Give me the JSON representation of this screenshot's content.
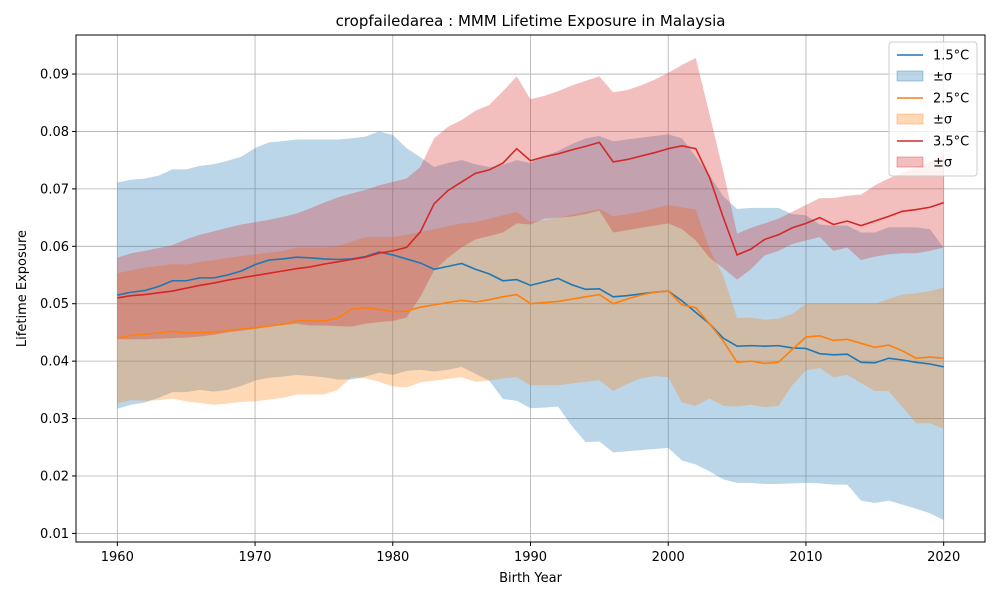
{
  "chart_data": {
    "type": "line",
    "title": "cropfailedarea : MMM Lifetime Exposure in Malaysia",
    "xlabel": "Birth Year",
    "ylabel": "Lifetime Exposure",
    "xlim": [
      1957,
      2023
    ],
    "ylim": [
      0.0085,
      0.0968
    ],
    "xticks": [
      1960,
      1970,
      1980,
      1990,
      2000,
      2010,
      2020
    ],
    "yticks": [
      0.01,
      0.02,
      0.03,
      0.04,
      0.05,
      0.06,
      0.07,
      0.08,
      0.09
    ],
    "ytick_labels": [
      "0.01",
      "0.02",
      "0.03",
      "0.04",
      "0.05",
      "0.06",
      "0.07",
      "0.08",
      "0.09"
    ],
    "grid": true,
    "legend_position": "top-right",
    "band_label": "±σ",
    "x": [
      1960,
      1961,
      1962,
      1963,
      1964,
      1965,
      1966,
      1967,
      1968,
      1969,
      1970,
      1971,
      1972,
      1973,
      1974,
      1975,
      1976,
      1977,
      1978,
      1979,
      1980,
      1981,
      1982,
      1983,
      1984,
      1985,
      1986,
      1987,
      1988,
      1989,
      1990,
      1991,
      1992,
      1993,
      1994,
      1995,
      1996,
      1997,
      1998,
      1999,
      2000,
      2001,
      2002,
      2003,
      2004,
      2005,
      2006,
      2007,
      2008,
      2009,
      2010,
      2011,
      2012,
      2013,
      2014,
      2015,
      2016,
      2017,
      2018,
      2019,
      2020
    ],
    "series": [
      {
        "name": "1.5°C",
        "color": "#1f77b4",
        "values": [
          0.0515,
          0.052,
          0.0523,
          0.053,
          0.054,
          0.054,
          0.0545,
          0.0545,
          0.055,
          0.0557,
          0.0568,
          0.0576,
          0.0578,
          0.0581,
          0.058,
          0.0578,
          0.0577,
          0.0578,
          0.0582,
          0.059,
          0.0585,
          0.0578,
          0.0571,
          0.056,
          0.0565,
          0.057,
          0.056,
          0.0552,
          0.054,
          0.0542,
          0.0532,
          0.0538,
          0.0544,
          0.0533,
          0.0525,
          0.0526,
          0.0512,
          0.0514,
          0.0517,
          0.052,
          0.0522,
          0.0505,
          0.0485,
          0.0465,
          0.044,
          0.0426,
          0.0427,
          0.0426,
          0.0427,
          0.0423,
          0.0422,
          0.0413,
          0.0411,
          0.0412,
          0.0398,
          0.0397,
          0.0405,
          0.0402,
          0.0398,
          0.0395,
          0.039
        ],
        "upper": [
          0.0711,
          0.0716,
          0.0718,
          0.0723,
          0.0734,
          0.0734,
          0.074,
          0.0743,
          0.0749,
          0.0756,
          0.0771,
          0.0781,
          0.0783,
          0.0786,
          0.0786,
          0.0786,
          0.0786,
          0.0788,
          0.0791,
          0.08,
          0.0794,
          0.0771,
          0.0755,
          0.0738,
          0.0745,
          0.075,
          0.0743,
          0.0738,
          0.0742,
          0.075,
          0.0745,
          0.0757,
          0.0766,
          0.0778,
          0.0788,
          0.0792,
          0.0783,
          0.0786,
          0.0789,
          0.0792,
          0.0795,
          0.0788,
          0.0756,
          0.0724,
          0.0687,
          0.0665,
          0.0667,
          0.0667,
          0.0667,
          0.0656,
          0.0654,
          0.0638,
          0.0636,
          0.0636,
          0.0624,
          0.0624,
          0.0633,
          0.0633,
          0.0633,
          0.063,
          0.0597
        ],
        "lower": [
          0.0317,
          0.0324,
          0.0328,
          0.0336,
          0.0346,
          0.0346,
          0.035,
          0.0347,
          0.035,
          0.0357,
          0.0366,
          0.0371,
          0.0373,
          0.0376,
          0.0374,
          0.0372,
          0.0368,
          0.0368,
          0.0373,
          0.038,
          0.0376,
          0.0383,
          0.0385,
          0.0382,
          0.0385,
          0.039,
          0.0378,
          0.0366,
          0.0334,
          0.0331,
          0.0318,
          0.0319,
          0.0321,
          0.0287,
          0.0259,
          0.026,
          0.0241,
          0.0243,
          0.0245,
          0.0247,
          0.0249,
          0.0227,
          0.022,
          0.0208,
          0.0194,
          0.0188,
          0.0188,
          0.0186,
          0.0186,
          0.0187,
          0.0188,
          0.0187,
          0.0185,
          0.0185,
          0.0157,
          0.0153,
          0.0157,
          0.015,
          0.0143,
          0.0135,
          0.0123
        ]
      },
      {
        "name": "2.5°C",
        "color": "#ff7f0e",
        "values": [
          0.044,
          0.0445,
          0.0447,
          0.0449,
          0.0452,
          0.0449,
          0.045,
          0.045,
          0.0453,
          0.0456,
          0.0458,
          0.0461,
          0.0464,
          0.047,
          0.047,
          0.047,
          0.0475,
          0.049,
          0.0493,
          0.049,
          0.0486,
          0.0487,
          0.0494,
          0.0498,
          0.0502,
          0.0506,
          0.0503,
          0.0507,
          0.0512,
          0.0516,
          0.05,
          0.0502,
          0.0504,
          0.0508,
          0.0512,
          0.0516,
          0.05,
          0.0508,
          0.0515,
          0.052,
          0.0522,
          0.0498,
          0.0493,
          0.0465,
          0.0435,
          0.0398,
          0.04,
          0.0396,
          0.0398,
          0.042,
          0.0442,
          0.0444,
          0.0436,
          0.0438,
          0.0431,
          0.0424,
          0.0428,
          0.0418,
          0.0405,
          0.0407,
          0.0405
        ],
        "upper": [
          0.0553,
          0.0558,
          0.0563,
          0.0566,
          0.0569,
          0.0568,
          0.0573,
          0.0576,
          0.058,
          0.0583,
          0.0586,
          0.0589,
          0.0592,
          0.0598,
          0.0598,
          0.0598,
          0.06,
          0.0608,
          0.0616,
          0.0616,
          0.0616,
          0.062,
          0.0625,
          0.063,
          0.0635,
          0.064,
          0.0642,
          0.0648,
          0.0654,
          0.066,
          0.0642,
          0.0646,
          0.065,
          0.0655,
          0.066,
          0.0665,
          0.0652,
          0.0656,
          0.066,
          0.0666,
          0.0672,
          0.0668,
          0.0664,
          0.0595,
          0.0548,
          0.0475,
          0.0476,
          0.0472,
          0.0474,
          0.0482,
          0.05,
          0.05,
          0.05,
          0.05,
          0.05,
          0.05,
          0.0508,
          0.0516,
          0.0518,
          0.0522,
          0.0528
        ],
        "lower": [
          0.0327,
          0.0332,
          0.0331,
          0.0332,
          0.0335,
          0.033,
          0.0327,
          0.0324,
          0.0326,
          0.0329,
          0.033,
          0.0333,
          0.0336,
          0.0342,
          0.0342,
          0.0342,
          0.035,
          0.0372,
          0.037,
          0.0364,
          0.0356,
          0.0354,
          0.0363,
          0.0366,
          0.0369,
          0.0372,
          0.0364,
          0.0366,
          0.037,
          0.0372,
          0.0358,
          0.0358,
          0.0358,
          0.0361,
          0.0364,
          0.0367,
          0.0348,
          0.036,
          0.037,
          0.0374,
          0.0372,
          0.0328,
          0.0322,
          0.0335,
          0.0322,
          0.0321,
          0.0324,
          0.032,
          0.0322,
          0.0358,
          0.0384,
          0.0388,
          0.0372,
          0.0376,
          0.0362,
          0.0348,
          0.0348,
          0.032,
          0.0292,
          0.0292,
          0.0282
        ]
      },
      {
        "name": "3.5°C",
        "color": "#d62728",
        "values": [
          0.051,
          0.0514,
          0.0516,
          0.0519,
          0.0522,
          0.0527,
          0.0532,
          0.0536,
          0.0541,
          0.0545,
          0.0549,
          0.0553,
          0.0557,
          0.0561,
          0.0564,
          0.0569,
          0.0573,
          0.0577,
          0.0581,
          0.0588,
          0.0592,
          0.0598,
          0.0625,
          0.0674,
          0.0697,
          0.0712,
          0.0727,
          0.0733,
          0.0745,
          0.077,
          0.0749,
          0.0756,
          0.0761,
          0.0768,
          0.0774,
          0.0781,
          0.0747,
          0.0751,
          0.0757,
          0.0763,
          0.077,
          0.0775,
          0.077,
          0.072,
          0.065,
          0.0585,
          0.0595,
          0.0612,
          0.062,
          0.0632,
          0.064,
          0.065,
          0.0638,
          0.0644,
          0.0636,
          0.0644,
          0.0652,
          0.0661,
          0.0664,
          0.0668,
          0.0676
        ],
        "upper": [
          0.058,
          0.0588,
          0.0592,
          0.0597,
          0.0602,
          0.0612,
          0.062,
          0.0626,
          0.0632,
          0.0638,
          0.0642,
          0.0646,
          0.0651,
          0.0657,
          0.0666,
          0.0676,
          0.0685,
          0.0692,
          0.0698,
          0.0706,
          0.0712,
          0.0718,
          0.0738,
          0.0788,
          0.0808,
          0.082,
          0.0836,
          0.0846,
          0.087,
          0.0896,
          0.0856,
          0.0862,
          0.087,
          0.088,
          0.0888,
          0.0896,
          0.0868,
          0.0872,
          0.088,
          0.089,
          0.0902,
          0.0916,
          0.0928,
          0.083,
          0.073,
          0.0622,
          0.0632,
          0.064,
          0.0648,
          0.066,
          0.0672,
          0.0684,
          0.0684,
          0.0688,
          0.069,
          0.0706,
          0.0718,
          0.0728,
          0.0738,
          0.0746,
          0.0762
        ],
        "lower": [
          0.0438,
          0.0438,
          0.0438,
          0.0439,
          0.044,
          0.0441,
          0.0443,
          0.0446,
          0.045,
          0.0453,
          0.0456,
          0.046,
          0.0463,
          0.0465,
          0.0462,
          0.0462,
          0.0461,
          0.046,
          0.0465,
          0.0468,
          0.047,
          0.0476,
          0.0512,
          0.0558,
          0.058,
          0.0598,
          0.0612,
          0.0618,
          0.0624,
          0.064,
          0.0638,
          0.0648,
          0.065,
          0.0652,
          0.0656,
          0.0662,
          0.0624,
          0.0628,
          0.0632,
          0.0636,
          0.064,
          0.063,
          0.061,
          0.058,
          0.0562,
          0.0542,
          0.056,
          0.0584,
          0.0592,
          0.0604,
          0.061,
          0.0616,
          0.0592,
          0.0598,
          0.0576,
          0.0582,
          0.0586,
          0.0588,
          0.0588,
          0.0592,
          0.0598
        ]
      }
    ]
  }
}
